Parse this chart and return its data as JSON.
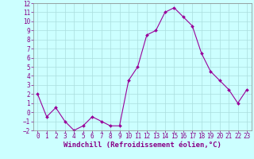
{
  "x": [
    0,
    1,
    2,
    3,
    4,
    5,
    6,
    7,
    8,
    9,
    10,
    11,
    12,
    13,
    14,
    15,
    16,
    17,
    18,
    19,
    20,
    21,
    22,
    23
  ],
  "y": [
    2,
    -0.5,
    0.5,
    -1,
    -2,
    -1.5,
    -0.5,
    -1,
    -1.5,
    -1.5,
    3.5,
    5,
    8.5,
    9,
    11,
    11.5,
    10.5,
    9.5,
    6.5,
    4.5,
    3.5,
    2.5,
    1,
    2.5
  ],
  "line_color": "#990099",
  "marker_color": "#990099",
  "bg_color": "#ccffff",
  "grid_color": "#aadddd",
  "xlabel": "Windchill (Refroidissement éolien,°C)",
  "xlabel_color": "#880088",
  "tick_color": "#880088",
  "spine_color": "#888888",
  "ylim": [
    -2,
    12
  ],
  "xlim": [
    -0.5,
    23.5
  ],
  "yticks": [
    -2,
    -1,
    0,
    1,
    2,
    3,
    4,
    5,
    6,
    7,
    8,
    9,
    10,
    11,
    12
  ],
  "xticks": [
    0,
    1,
    2,
    3,
    4,
    5,
    6,
    7,
    8,
    9,
    10,
    11,
    12,
    13,
    14,
    15,
    16,
    17,
    18,
    19,
    20,
    21,
    22,
    23
  ],
  "label_fontsize": 6.5,
  "tick_fontsize": 5.5
}
